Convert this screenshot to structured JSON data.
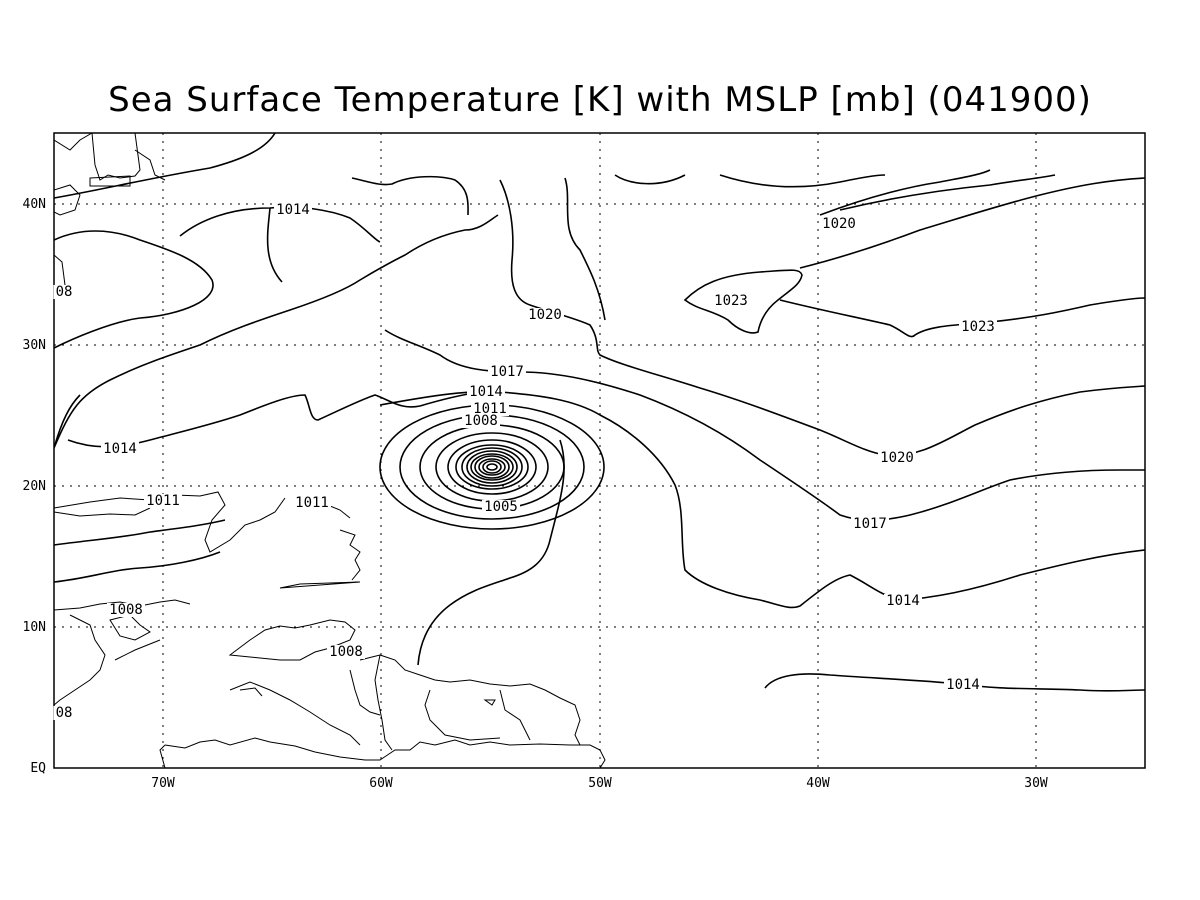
{
  "title": "Sea Surface Temperature [K] with MSLP [mb] (041900)",
  "x_ticks": [
    "70W",
    "60W",
    "50W",
    "40W",
    "30W"
  ],
  "y_ticks": [
    "EQ",
    "10N",
    "20N",
    "30N",
    "40N"
  ],
  "contour_labels": [
    "1014",
    "08",
    "1014",
    "1011",
    "1011",
    "1008",
    "08",
    "1008",
    "1017",
    "1014",
    "1011",
    "1008",
    "1005",
    "1020",
    "1023",
    "1020",
    "1023",
    "1020",
    "1017",
    "1014",
    "1014"
  ],
  "colors": {
    "line": "#000000",
    "background": "#ffffff"
  }
}
